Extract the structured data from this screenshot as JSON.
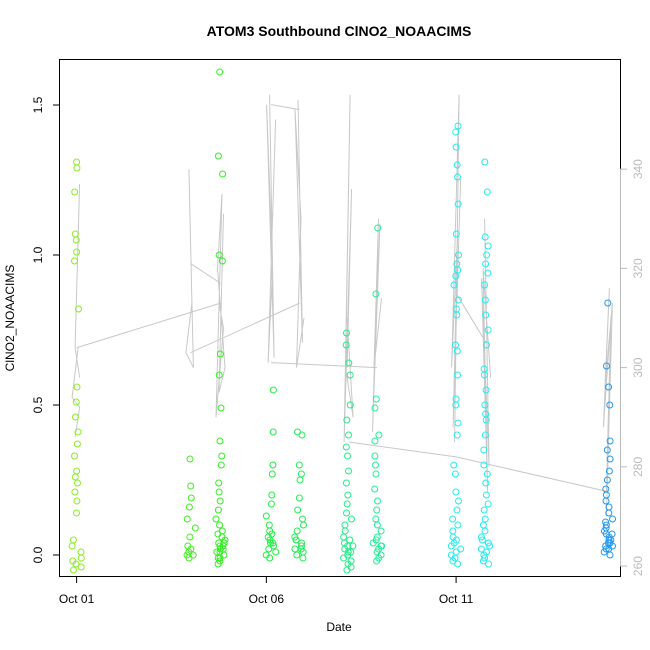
{
  "chart_data": {
    "type": "scatter",
    "title": "ATOM3 Southbound ClNO2_NOAACIMS",
    "xlabel": "Date",
    "ylabel": "ClNO2_NOAACIMS",
    "x_type": "date",
    "xlim": [
      "2017-09-30T13:30",
      "2017-10-15T07:40"
    ],
    "ylim": [
      -0.07,
      1.65
    ],
    "y2lim": [
      258,
      362
    ],
    "x_ticks": [
      {
        "x": "2017-10-01",
        "label": "Oct 01"
      },
      {
        "x": "2017-10-06",
        "label": "Oct 06"
      },
      {
        "x": "2017-10-11",
        "label": "Oct 11"
      }
    ],
    "y_ticks": [
      {
        "y": 0.0,
        "label": "0.0"
      },
      {
        "y": 0.5,
        "label": "0.5"
      },
      {
        "y": 1.0,
        "label": "1.0"
      },
      {
        "y": 1.5,
        "label": "1.5"
      }
    ],
    "y2_ticks": [
      {
        "y": 260,
        "label": "260"
      },
      {
        "y": 280,
        "label": "280"
      },
      {
        "y": 300,
        "label": "300"
      },
      {
        "y": 320,
        "label": "320"
      },
      {
        "y": 340,
        "label": "340"
      }
    ],
    "grid": false,
    "right_axis_color": "#bbbbbb",
    "line_color": "#c8c8c8",
    "series": [
      {
        "x": "2017-10-01T00:00",
        "color": "#88ee22",
        "values": [
          1.31,
          1.29,
          1.21,
          1.07,
          1.05,
          1.01,
          0.98,
          0.82,
          0.56,
          0.51,
          0.46,
          0.41,
          0.37,
          0.33,
          0.28,
          0.26,
          0.24,
          0.21,
          0.18,
          0.14,
          0.05,
          0.03,
          0.01,
          -0.01,
          -0.02,
          -0.03,
          -0.04,
          -0.05
        ]
      },
      {
        "x": "2017-10-04T00:00",
        "color": "#44ee22",
        "values": [
          0.32,
          0.23,
          0.19,
          0.16,
          0.12,
          0.09,
          0.06,
          0.03,
          0.02,
          0.01,
          0.0,
          0.0,
          -0.01
        ]
      },
      {
        "x": "2017-10-04T19:00",
        "color": "#33ee22",
        "values": [
          1.61,
          1.33,
          1.27,
          1.0,
          0.98,
          0.67,
          0.6,
          0.49,
          0.38,
          0.33,
          0.3,
          0.24,
          0.21,
          0.18,
          0.15,
          0.12,
          0.1,
          0.08,
          0.06,
          0.05,
          0.04,
          0.03,
          0.02,
          0.01,
          0.0,
          -0.01,
          -0.02,
          -0.03,
          0.07,
          0.03,
          0.01,
          -0.01,
          0.02,
          0.04
        ]
      },
      {
        "x": "2017-10-06T03:00",
        "color": "#22ee44",
        "values": [
          0.55,
          0.41,
          0.3,
          0.27,
          0.2,
          0.17,
          0.13,
          0.1,
          0.08,
          0.06,
          0.05,
          0.04,
          0.03,
          0.02,
          0.01,
          0.0,
          -0.01,
          0.07,
          0.04
        ]
      },
      {
        "x": "2017-10-06T21:00",
        "color": "#22ee55",
        "values": [
          0.41,
          0.4,
          0.3,
          0.27,
          0.25,
          0.19,
          0.15,
          0.12,
          0.1,
          0.08,
          0.06,
          0.05,
          0.04,
          0.03,
          0.02,
          0.01,
          0.0,
          -0.01,
          0.05,
          0.02
        ]
      },
      {
        "x": "2017-10-08T04:00",
        "color": "#22ee88",
        "values": [
          0.74,
          0.7,
          0.64,
          0.6,
          0.5,
          0.45,
          0.4,
          0.36,
          0.33,
          0.28,
          0.24,
          0.2,
          0.17,
          0.14,
          0.12,
          0.1,
          0.08,
          0.06,
          0.05,
          0.04,
          0.03,
          0.02,
          0.01,
          0.0,
          -0.01,
          -0.02,
          -0.03,
          -0.04,
          -0.05,
          0.03,
          0.01
        ]
      },
      {
        "x": "2017-10-08T22:00",
        "color": "#22ee99",
        "values": [
          1.09,
          0.87,
          0.52,
          0.49,
          0.4,
          0.38,
          0.33,
          0.3,
          0.27,
          0.22,
          0.18,
          0.15,
          0.12,
          0.1,
          0.08,
          0.06,
          0.05,
          0.04,
          0.03,
          0.02,
          0.01,
          0.0,
          -0.01,
          -0.02,
          0.03
        ]
      },
      {
        "x": "2017-10-11T00:00",
        "color": "#22eeee",
        "values": [
          1.43,
          1.41,
          1.36,
          1.3,
          1.26,
          1.17,
          1.07,
          1.0,
          0.97,
          0.95,
          0.93,
          0.9,
          0.85,
          0.82,
          0.8,
          0.7,
          0.68,
          0.6,
          0.52,
          0.5,
          0.44,
          0.4,
          0.3,
          0.27,
          0.21,
          0.18,
          0.15,
          0.12,
          0.1,
          0.08,
          0.06,
          0.05,
          0.04,
          0.03,
          0.02,
          0.01,
          0.0,
          -0.01,
          -0.02,
          -0.03
        ]
      },
      {
        "x": "2017-10-11T19:00",
        "color": "#22eeee",
        "values": [
          1.31,
          1.21,
          1.06,
          1.03,
          1.0,
          0.97,
          0.94,
          0.9,
          0.85,
          0.8,
          0.75,
          0.7,
          0.62,
          0.6,
          0.55,
          0.5,
          0.47,
          0.45,
          0.4,
          0.35,
          0.3,
          0.27,
          0.24,
          0.2,
          0.17,
          0.15,
          0.12,
          0.1,
          0.08,
          0.06,
          0.05,
          0.04,
          0.03,
          0.02,
          0.01,
          0.0,
          -0.01,
          -0.02,
          -0.03
        ]
      },
      {
        "x": "2017-10-15T00:00",
        "color": "#2299ee",
        "values": [
          0.84,
          0.63,
          0.56,
          0.5,
          0.38,
          0.35,
          0.32,
          0.28,
          0.25,
          0.22,
          0.2,
          0.18,
          0.16,
          0.14,
          0.12,
          0.11,
          0.1,
          0.09,
          0.08,
          0.07,
          0.06,
          0.05,
          0.04,
          0.03,
          0.02,
          0.01,
          0.0,
          0.03,
          0.05,
          0.07,
          0.02,
          0.04
        ]
      }
    ],
    "line_segments": [
      {
        "x": "2017-10-01T00:00",
        "y2": [
          286,
          292,
          294,
          304
        ]
      },
      {
        "x": "2017-10-01T00:00",
        "y2": [
          304,
          337
        ]
      },
      {
        "x": "2017-10-01T00:00",
        "y2": [
          304,
          298
        ]
      },
      {
        "x": "2017-10-04T00:00",
        "y2": [
          340,
          300,
          303,
          313
        ]
      },
      {
        "x": "2017-10-04T19:00",
        "y2": [
          313,
          308,
          290,
          335,
          320,
          300,
          295,
          331
        ]
      },
      {
        "x": "2017-10-06T03:00",
        "y2": [
          355,
          302,
          353,
          320,
          301,
          350
        ]
      },
      {
        "x": "2017-10-06T21:00",
        "y2": [
          354,
          305,
          352,
          330,
          300,
          310
        ]
      },
      {
        "x": "2017-10-08T04:00",
        "y2": [
          300,
          336,
          285,
          355,
          300,
          290,
          310
        ]
      },
      {
        "x": "2017-10-08T22:00",
        "y2": [
          310,
          329,
          287,
          330,
          300,
          314
        ]
      },
      {
        "x": "2017-10-11T00:00",
        "y2": [
          285,
          355,
          300,
          327,
          288,
          338
        ]
      },
      {
        "x": "2017-10-11T19:00",
        "y2": [
          330,
          280,
          318,
          275,
          320,
          298
        ]
      },
      {
        "x": "2017-10-15T00:00",
        "y2": [
          275,
          310,
          288,
          316,
          296,
          313,
          270
        ]
      }
    ],
    "connector_lines": [
      {
        "from": {
          "x": "2017-10-01T00:00",
          "y2": 304
        },
        "to": {
          "x": "2017-10-04T19:00",
          "y2": 313
        }
      },
      {
        "from": {
          "x": "2017-10-04T00:00",
          "y2": 321
        },
        "to": {
          "x": "2017-10-04T19:00",
          "y2": 317
        }
      },
      {
        "from": {
          "x": "2017-10-04T00:00",
          "y2": 303
        },
        "to": {
          "x": "2017-10-06T21:00",
          "y2": 313
        }
      },
      {
        "from": {
          "x": "2017-10-06T03:00",
          "y2": 353
        },
        "to": {
          "x": "2017-10-06T21:00",
          "y2": 352
        }
      },
      {
        "from": {
          "x": "2017-10-06T03:00",
          "y2": 301
        },
        "to": {
          "x": "2017-10-08T22:00",
          "y2": 300
        }
      },
      {
        "from": {
          "x": "2017-10-08T04:00",
          "y2": 285
        },
        "to": {
          "x": "2017-10-11T00:00",
          "y2": 282
        }
      },
      {
        "from": {
          "x": "2017-10-11T00:00",
          "y2": 282
        },
        "to": {
          "x": "2017-10-15T00:00",
          "y2": 275
        }
      },
      {
        "from": {
          "x": "2017-10-11T00:00",
          "y2": 315
        },
        "to": {
          "x": "2017-10-11T19:00",
          "y2": 305
        }
      }
    ]
  }
}
